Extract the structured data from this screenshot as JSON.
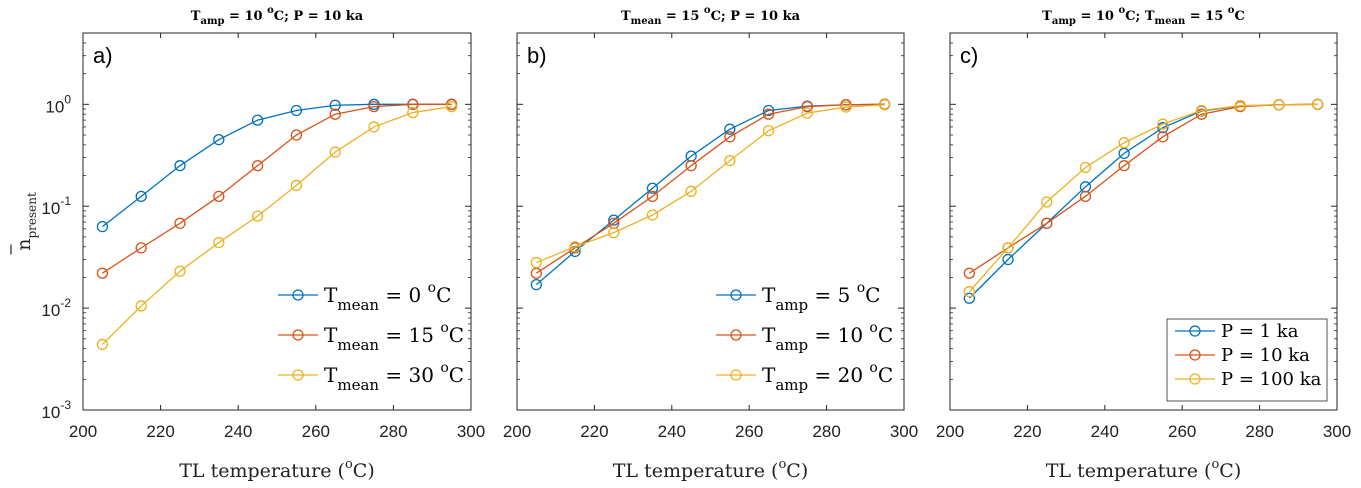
{
  "chart_data": [
    {
      "type": "line",
      "panel_label": "a)",
      "title": {
        "parts": [
          "T",
          "amp",
          " = 10 ",
          "o",
          "C;     P = 10 ka"
        ]
      },
      "xlabel": "TL temperature (",
      "xlabel_sup": "o",
      "xlabel_end": "C)",
      "ylabel": "n",
      "ylabel_sub": "present",
      "xlim": [
        200,
        300
      ],
      "ylim_log10": [
        -3,
        0.7
      ],
      "log_y": true,
      "x_ticks": [
        "200",
        "220",
        "240",
        "260",
        "280",
        "300"
      ],
      "y_ticks": [
        {
          "base": "10",
          "exp": "-3"
        },
        {
          "base": "10",
          "exp": "-2"
        },
        {
          "base": "10",
          "exp": "-1"
        },
        {
          "base": "10",
          "exp": "0"
        }
      ],
      "legend_position": "lower-right",
      "x": [
        205,
        215,
        225,
        235,
        245,
        255,
        265,
        275,
        285,
        295
      ],
      "series": [
        {
          "name": "T_mean = 0 oC",
          "label": {
            "main": "T",
            "sub": "mean",
            "mid": " = 0 ",
            "sup": "o",
            "end": "C"
          },
          "color": "#0072BD",
          "values": [
            0.063,
            0.125,
            0.25,
            0.45,
            0.7,
            0.87,
            0.98,
            1.0,
            1.0,
            1.0
          ]
        },
        {
          "name": "T_mean = 15 oC",
          "label": {
            "main": "T",
            "sub": "mean",
            "mid": " = 15 ",
            "sup": "o",
            "end": "C"
          },
          "color": "#D95319",
          "values": [
            0.022,
            0.039,
            0.068,
            0.125,
            0.25,
            0.5,
            0.8,
            0.95,
            1.0,
            1.0
          ]
        },
        {
          "name": "T_mean = 30 oC",
          "label": {
            "main": "T",
            "sub": "mean",
            "mid": " = 30 ",
            "sup": "o",
            "end": "C"
          },
          "color": "#EDB120",
          "values": [
            0.0044,
            0.0105,
            0.023,
            0.044,
            0.08,
            0.16,
            0.34,
            0.6,
            0.83,
            0.95
          ]
        }
      ]
    },
    {
      "type": "line",
      "panel_label": "b)",
      "title": {
        "parts": [
          "T",
          "mean",
          " = 15 ",
          "o",
          "C;     P = 10 ka"
        ]
      },
      "xlabel": "TL temperature (",
      "xlabel_sup": "o",
      "xlabel_end": "C)",
      "xlim": [
        200,
        300
      ],
      "ylim_log10": [
        -3,
        0.7
      ],
      "log_y": true,
      "x_ticks": [
        "200",
        "220",
        "240",
        "260",
        "280",
        "300"
      ],
      "legend_position": "lower-right",
      "x": [
        205,
        215,
        225,
        235,
        245,
        255,
        265,
        275,
        285,
        295
      ],
      "series": [
        {
          "name": "T_amp = 5 oC",
          "label": {
            "main": "T",
            "sub": "amp",
            "mid": " = 5 ",
            "sup": "o",
            "end": "C"
          },
          "color": "#0072BD",
          "values": [
            0.017,
            0.036,
            0.073,
            0.15,
            0.31,
            0.57,
            0.87,
            0.96,
            0.99,
            1.0
          ]
        },
        {
          "name": "T_amp = 10 oC",
          "label": {
            "main": "T",
            "sub": "amp",
            "mid": " = 10 ",
            "sup": "o",
            "end": "C"
          },
          "color": "#D95319",
          "values": [
            0.022,
            0.039,
            0.068,
            0.125,
            0.25,
            0.48,
            0.8,
            0.95,
            0.99,
            1.0
          ]
        },
        {
          "name": "T_amp = 20 oC",
          "label": {
            "main": "T",
            "sub": "amp",
            "mid": " = 20 ",
            "sup": "o",
            "end": "C"
          },
          "color": "#EDB120",
          "values": [
            0.028,
            0.04,
            0.055,
            0.082,
            0.14,
            0.28,
            0.55,
            0.82,
            0.94,
            0.99
          ]
        }
      ]
    },
    {
      "type": "line",
      "panel_label": "c)",
      "title": {
        "parts": [
          "T",
          "amp",
          " = 10 ",
          "o",
          "C;     T",
          "mean",
          " = 15 ",
          "o",
          "C"
        ]
      },
      "xlabel": "TL temperature (",
      "xlabel_sup": "o",
      "xlabel_end": "C)",
      "xlim": [
        200,
        300
      ],
      "ylim_log10": [
        -3,
        0.7
      ],
      "log_y": true,
      "x_ticks": [
        "200",
        "220",
        "240",
        "260",
        "280",
        "300"
      ],
      "legend_position": "lower-right",
      "x": [
        205,
        215,
        225,
        235,
        245,
        255,
        265,
        275,
        285,
        295
      ],
      "series": [
        {
          "name": "P = 1 ka",
          "label": {
            "main": "P = 1 ka"
          },
          "color": "#0072BD",
          "values": [
            0.0125,
            0.03,
            0.068,
            0.155,
            0.33,
            0.59,
            0.86,
            0.96,
            0.99,
            1.0
          ]
        },
        {
          "name": "P = 10 ka",
          "label": {
            "main": "P = 10 ka"
          },
          "color": "#D95319",
          "values": [
            0.022,
            0.039,
            0.068,
            0.125,
            0.25,
            0.48,
            0.8,
            0.95,
            0.99,
            1.0
          ]
        },
        {
          "name": "P = 100 ka",
          "label": {
            "main": "P = 100 ka"
          },
          "color": "#EDB120",
          "values": [
            0.0145,
            0.039,
            0.11,
            0.24,
            0.42,
            0.64,
            0.87,
            0.97,
            0.99,
            1.0
          ]
        }
      ]
    }
  ]
}
